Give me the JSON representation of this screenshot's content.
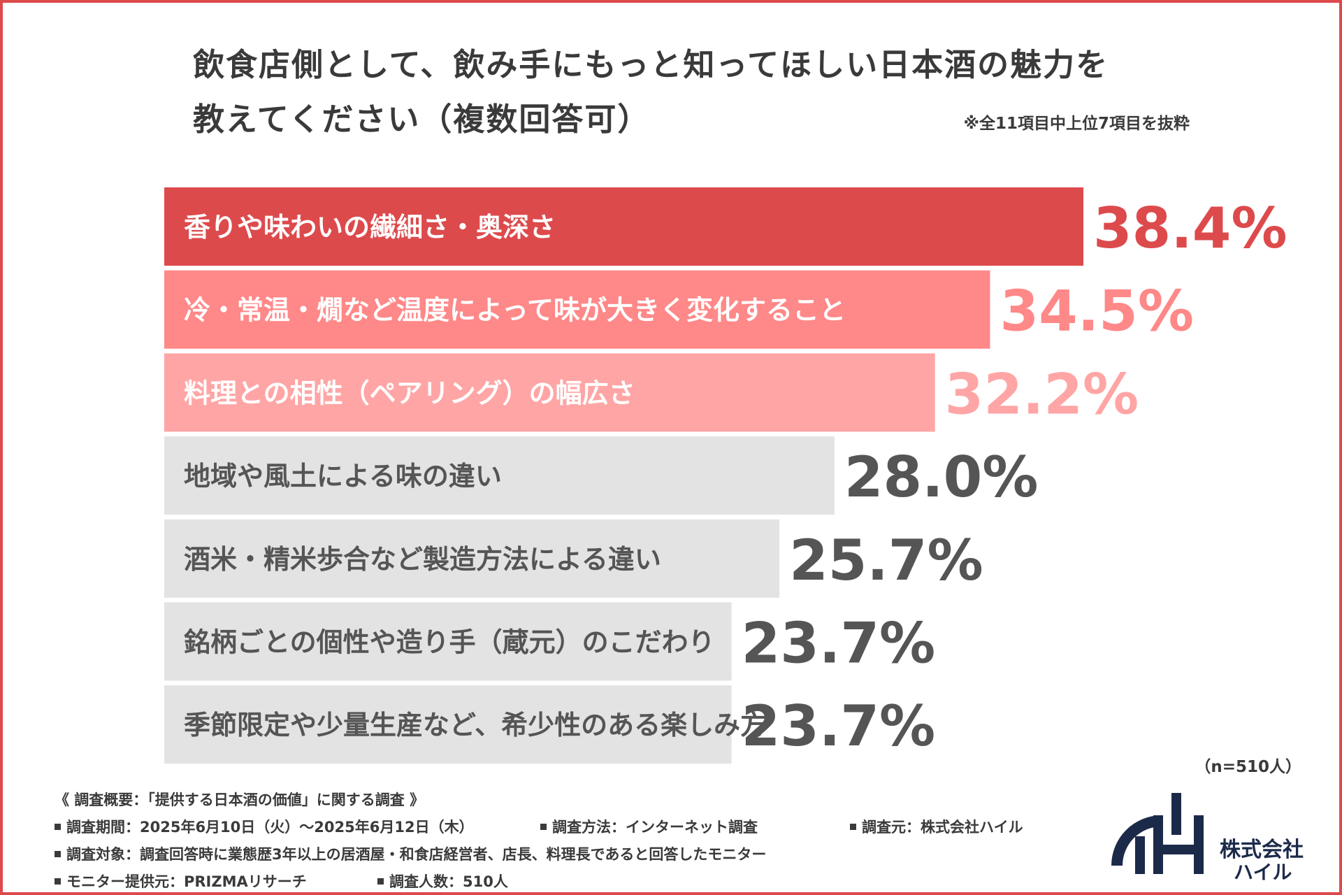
{
  "title": {
    "line1": "飲食店側として、飲み手にもっと知ってほしい日本酒の魅力を",
    "line2": "教えてください（複数回答可）",
    "note": "※全11項目中上位7項目を抜粋"
  },
  "chart_data": {
    "type": "bar",
    "orientation": "horizontal",
    "categories": [
      "香りや味わいの繊細さ・奥深さ",
      "冷・常温・燗など温度によって味が大きく変化すること",
      "料理との相性（ペアリング）の幅広さ",
      "地域や風土による味の違い",
      "酒米・精米歩合など製造方法による違い",
      "銘柄ごとの個性や造り手（蔵元）のこだわり",
      "季節限定や少量生産など、希少性のある楽しみ方"
    ],
    "values": [
      38.4,
      34.5,
      32.2,
      28.0,
      25.7,
      23.7,
      23.7
    ],
    "value_labels": [
      "38.4%",
      "34.5%",
      "32.2%",
      "28.0%",
      "25.7%",
      "23.7%",
      "23.7%"
    ],
    "bar_colors": [
      "#dd4a4c",
      "#ff8888",
      "#ffa5a5",
      "#e3e3e3",
      "#e3e3e3",
      "#e3e3e3",
      "#e3e3e3"
    ],
    "label_text_colors": [
      "#ffffff",
      "#ffffff",
      "#ffffff",
      "#555555",
      "#555555",
      "#555555",
      "#555555"
    ],
    "value_text_colors": [
      "#dd4a4c",
      "#ff8888",
      "#ffa5a5",
      "#555555",
      "#555555",
      "#555555",
      "#555555"
    ],
    "xlim": [
      0,
      40
    ],
    "grid": false,
    "legend": "none"
  },
  "sample_size": "（n=510人）",
  "survey": {
    "heading": "《 調査概要：「提供する日本酒の価値」に関する調査 》",
    "period": "調査期間：2025年6月10日（火）〜2025年6月12日（木）",
    "method": "調査方法：インターネット調査",
    "source": "調査元：株式会社ハイル",
    "target": "調査対象：調査回答時に業態歴3年以上の居酒屋・和食店経営者、店長、料理長であると回答したモニター",
    "provider": "モニター提供元：PRIZMAリサーチ",
    "count": "調査人数：510人"
  },
  "logo": {
    "line1": "株式会社",
    "line2": "ハイル",
    "color": "#1c2a4a"
  }
}
